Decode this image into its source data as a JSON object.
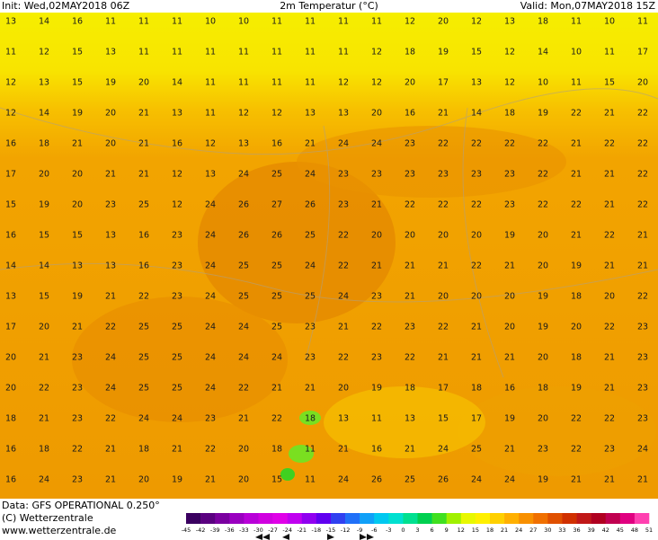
{
  "header": {
    "init": "Init: Wed,02MAY2018 06Z",
    "title": "2m Temperatur (°C)",
    "valid": "Valid: Mon,07MAY2018 15Z"
  },
  "footer": {
    "data": "Data: GFS OPERATIONAL 0.250°",
    "copyright": "(C) Wetterzentrale",
    "url": "www.wetterzentrale.de"
  },
  "colorbar": {
    "labels": [
      -45,
      -42,
      -39,
      -36,
      -33,
      -30,
      -27,
      -24,
      -21,
      -18,
      -15,
      -12,
      -9,
      -6,
      -3,
      0,
      3,
      6,
      9,
      12,
      15,
      18,
      21,
      24,
      27,
      30,
      33,
      36,
      39,
      42,
      45,
      48,
      51
    ],
    "colors": [
      "#3a0060",
      "#5a0080",
      "#7a00a0",
      "#9a00c0",
      "#b800d8",
      "#d000e0",
      "#e000e8",
      "#c000f0",
      "#9000f0",
      "#6000f0",
      "#3040f0",
      "#2070f8",
      "#10a0f8",
      "#00c8f0",
      "#00e0d0",
      "#00e090",
      "#00d050",
      "#40e020",
      "#a0f000",
      "#e8f800",
      "#fff000",
      "#ffd000",
      "#ffb000",
      "#f89000",
      "#f07000",
      "#e05000",
      "#d03000",
      "#c01818",
      "#b00020",
      "#c00050",
      "#e00080",
      "#ff40b0"
    ]
  },
  "grid": [
    [
      13,
      14,
      16,
      11,
      11,
      11,
      10,
      10,
      11,
      11,
      11,
      11,
      12,
      20,
      12,
      13,
      18,
      11,
      10,
      11
    ],
    [
      11,
      12,
      15,
      13,
      11,
      11,
      11,
      11,
      11,
      11,
      11,
      12,
      18,
      19,
      15,
      12,
      14,
      10,
      11,
      17
    ],
    [
      12,
      13,
      15,
      19,
      20,
      14,
      11,
      11,
      11,
      11,
      12,
      12,
      20,
      17,
      13,
      12,
      10,
      11,
      15,
      20
    ],
    [
      12,
      14,
      19,
      20,
      21,
      13,
      11,
      12,
      12,
      13,
      13,
      20,
      16,
      21,
      14,
      18,
      19,
      22,
      21,
      22
    ],
    [
      16,
      18,
      21,
      20,
      21,
      16,
      12,
      13,
      16,
      21,
      24,
      24,
      23,
      22,
      22,
      22,
      22,
      21,
      22,
      22
    ],
    [
      17,
      20,
      20,
      21,
      21,
      12,
      13,
      24,
      25,
      24,
      23,
      23,
      23,
      23,
      23,
      23,
      22,
      21,
      21,
      22
    ],
    [
      15,
      19,
      20,
      23,
      25,
      12,
      24,
      26,
      27,
      26,
      23,
      21,
      22,
      22,
      22,
      23,
      22,
      22,
      21,
      22
    ],
    [
      16,
      15,
      15,
      13,
      16,
      23,
      24,
      26,
      26,
      25,
      22,
      20,
      20,
      20,
      20,
      19,
      20,
      21,
      22,
      21
    ],
    [
      14,
      14,
      13,
      13,
      16,
      23,
      24,
      25,
      25,
      24,
      22,
      21,
      21,
      21,
      22,
      21,
      20,
      19,
      21,
      21
    ],
    [
      13,
      15,
      19,
      21,
      22,
      23,
      24,
      25,
      25,
      25,
      24,
      23,
      21,
      20,
      20,
      20,
      19,
      18,
      20,
      22
    ],
    [
      17,
      20,
      21,
      22,
      25,
      25,
      24,
      24,
      25,
      23,
      21,
      22,
      23,
      22,
      21,
      20,
      19,
      20,
      22,
      23
    ],
    [
      20,
      21,
      23,
      24,
      25,
      25,
      24,
      24,
      24,
      23,
      22,
      23,
      22,
      21,
      21,
      21,
      20,
      18,
      21,
      23
    ],
    [
      20,
      22,
      23,
      24,
      25,
      25,
      24,
      22,
      21,
      21,
      20,
      19,
      18,
      17,
      18,
      16,
      18,
      19,
      21,
      23
    ],
    [
      18,
      21,
      23,
      22,
      24,
      24,
      23,
      21,
      22,
      18,
      13,
      11,
      13,
      15,
      17,
      19,
      20,
      22,
      22,
      23
    ],
    [
      16,
      18,
      22,
      21,
      18,
      21,
      22,
      20,
      18,
      11,
      21,
      16,
      21,
      24,
      25,
      21,
      23,
      22,
      23,
      24
    ],
    [
      16,
      24,
      23,
      21,
      20,
      19,
      21,
      20,
      15,
      11,
      24,
      26,
      25,
      26,
      24,
      24,
      19,
      21,
      21,
      21
    ]
  ]
}
